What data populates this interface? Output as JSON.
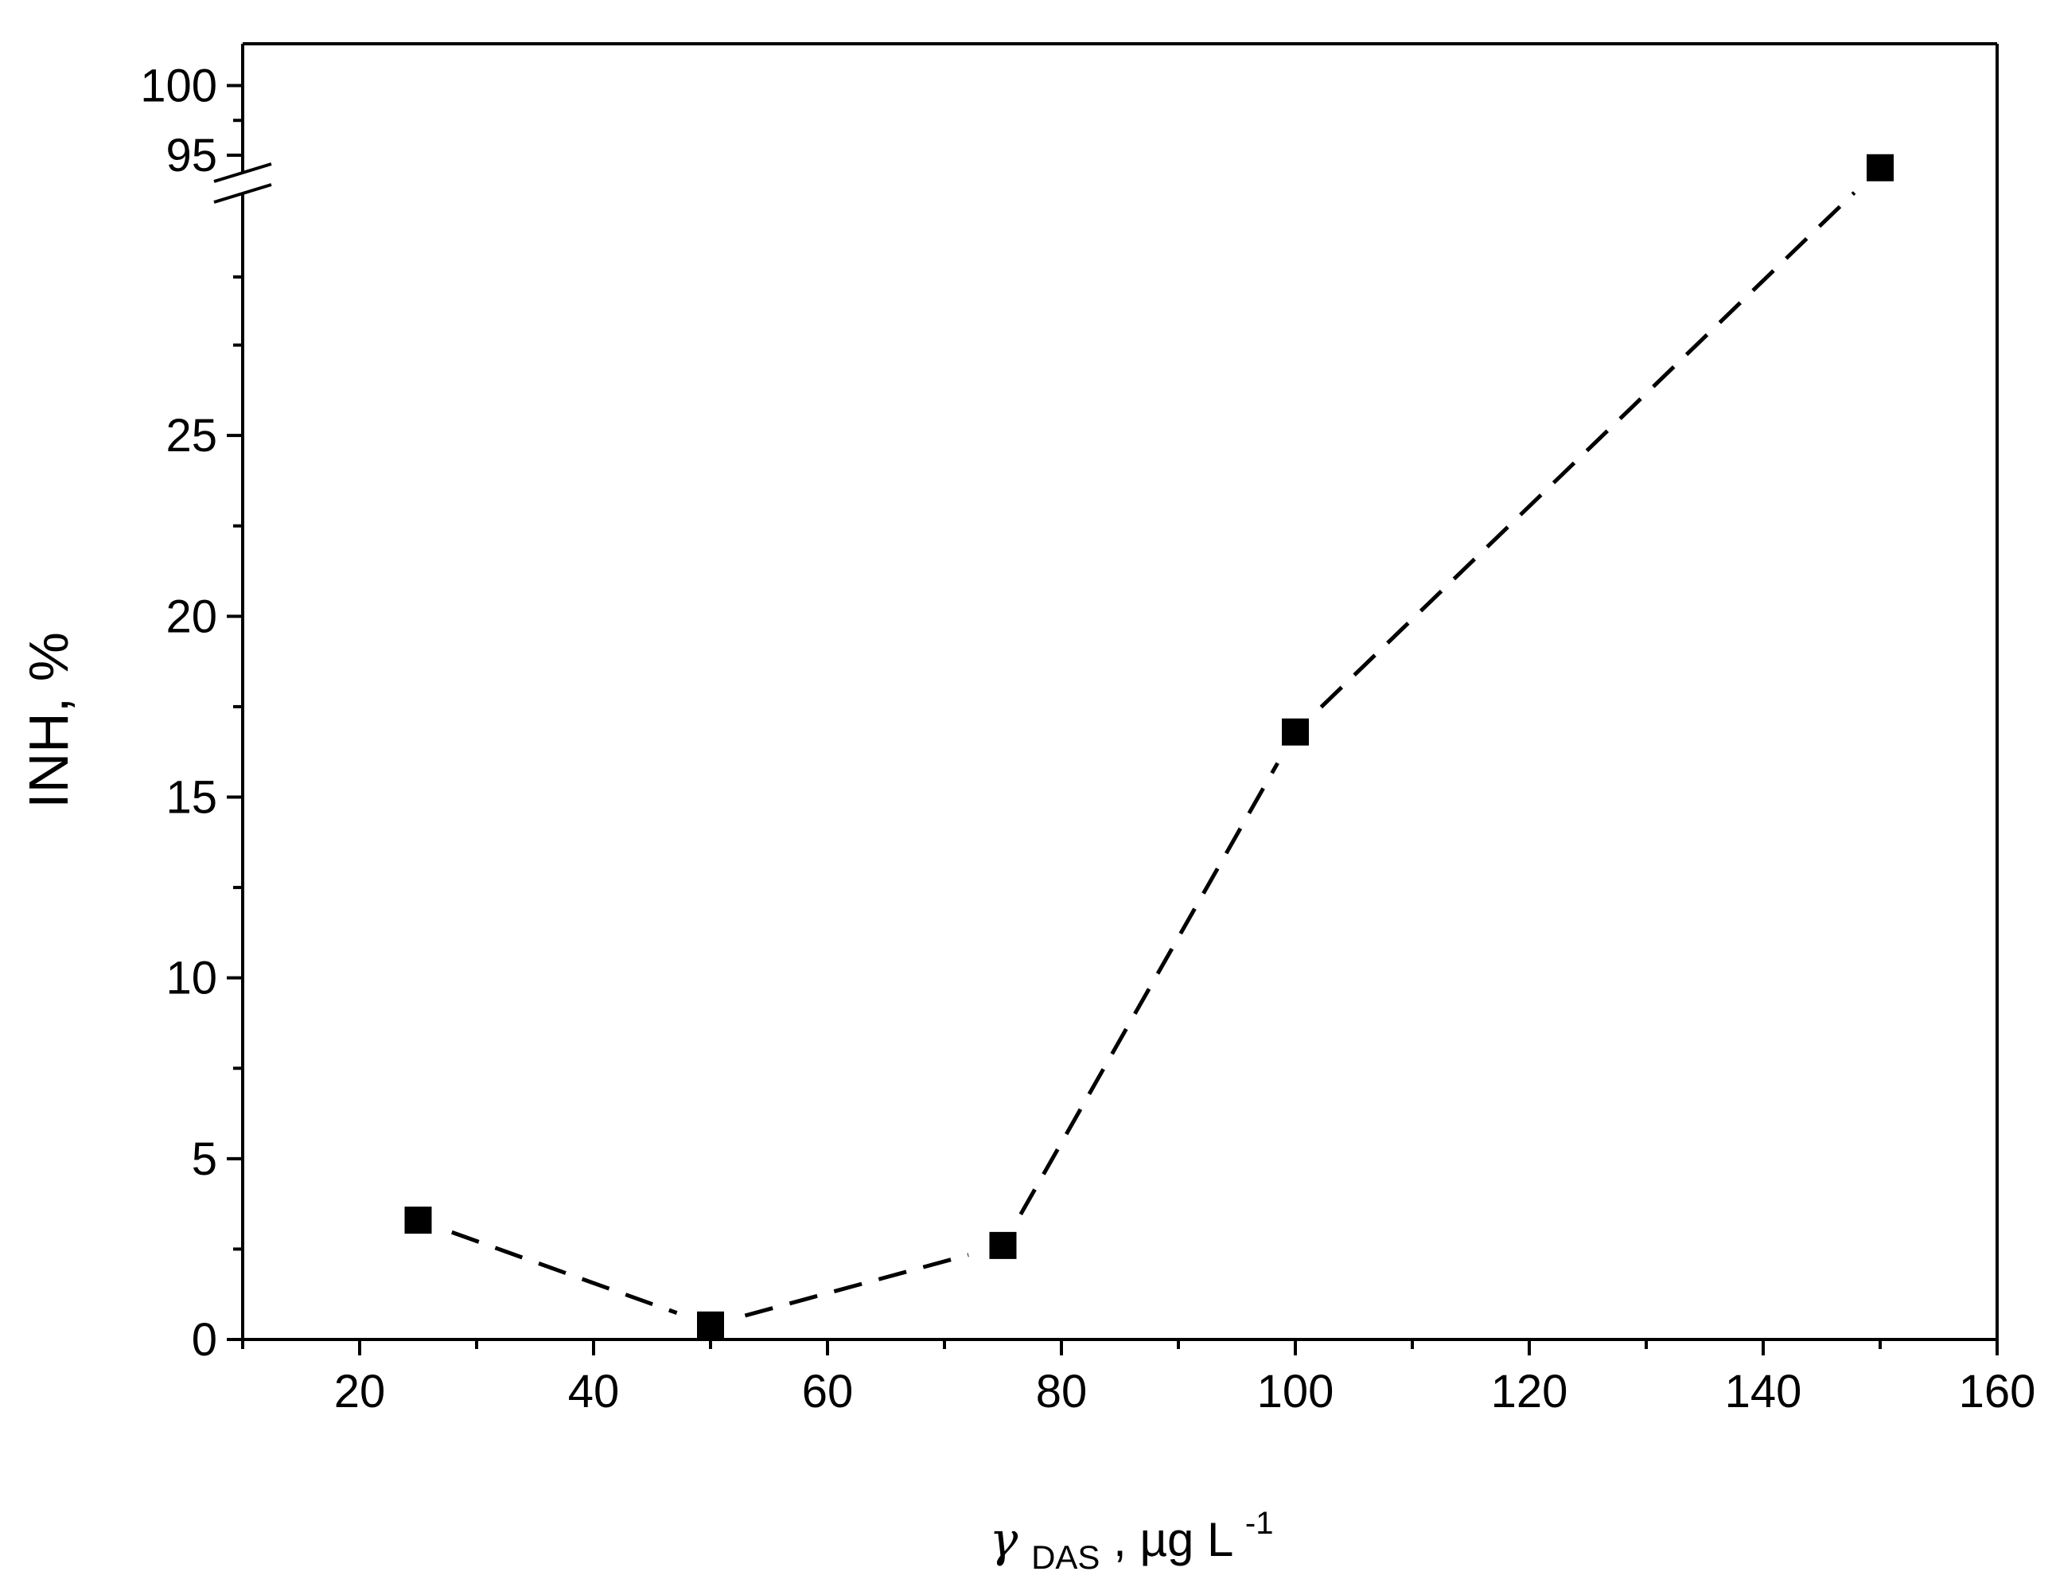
{
  "chart_data": {
    "type": "line",
    "title": "",
    "xlabel": "γDAS, µg L-1",
    "xlabel_parts": {
      "symbol": "γ",
      "subscript": "DAS",
      "unit": ", µg L",
      "superscript": "-1"
    },
    "ylabel": "INH, %",
    "xlim": [
      10,
      160
    ],
    "ylim_lower": [
      0,
      30
    ],
    "ylim_upper": [
      95,
      100
    ],
    "y_axis_break": [
      30,
      95
    ],
    "x_ticks": [
      20,
      40,
      60,
      80,
      100,
      120,
      140,
      160
    ],
    "y_ticks_lower": [
      0,
      5,
      10,
      15,
      20,
      25
    ],
    "y_ticks_upper": [
      95,
      100
    ],
    "x_tick_labels": [
      "20",
      "40",
      "60",
      "80",
      "100",
      "120",
      "140",
      "160"
    ],
    "y_tick_labels": [
      "0",
      "5",
      "10",
      "15",
      "20",
      "25",
      "95",
      "100"
    ],
    "series": [
      {
        "name": "INH",
        "marker": "square",
        "line_style": "dashed",
        "x": [
          25,
          50,
          75,
          100,
          150
        ],
        "y": [
          3.3,
          0.4,
          2.6,
          16.8,
          94.1
        ]
      }
    ],
    "grid": false,
    "legend": "none"
  }
}
